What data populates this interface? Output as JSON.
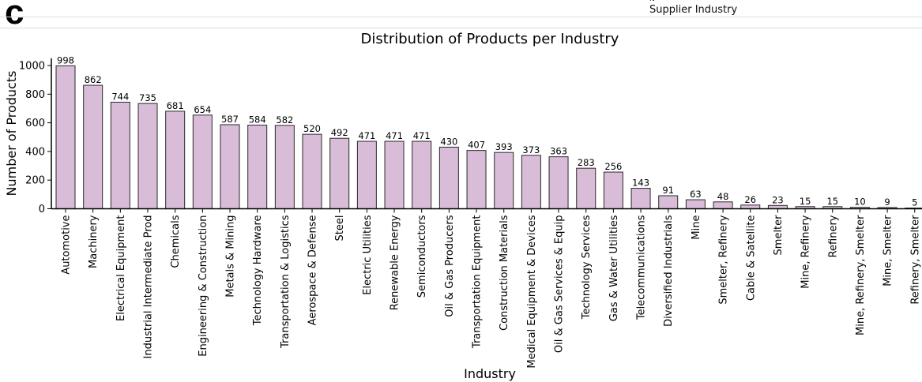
{
  "panel_label": "c",
  "header": {
    "cut_text": "N",
    "label": "Supplier Industry"
  },
  "colors": {
    "bar_fill": "#d8bcd8",
    "bar_stroke": "#2a2a2a",
    "axis": "#000000"
  },
  "chart_data": {
    "type": "bar",
    "title": "Distribution of Products per Industry",
    "xlabel": "Industry",
    "ylabel": "Number of Products",
    "ylim": [
      0,
      1050
    ],
    "yticks": [
      0,
      200,
      400,
      600,
      800,
      1000
    ],
    "grid": false,
    "categories": [
      "Automotive",
      "Machinery",
      "Electrical Equipment",
      "Industrial Intermediate Prod",
      "Chemicals",
      "Engineering & Construction",
      "Metals & Mining",
      "Technology Hardware",
      "Transportation & Logistics",
      "Aerospace & Defense",
      "Steel",
      "Electric Utilities",
      "Renewable Energy",
      "Semiconductors",
      "Oil & Gas Producers",
      "Transportation Equipment",
      "Construction Materials",
      "Medical Equipment & Devices",
      "Oil & Gas Services & Equip",
      "Technology Services",
      "Gas & Water Utilities",
      "Telecommunications",
      "Diversified Industrials",
      "Mine",
      "Smelter, Refinery",
      "Cable & Satellite",
      "Smelter",
      "Mine, Refinery",
      "Refinery",
      "Mine, Refinery, Smelter",
      "Mine, Smelter",
      "Refinery, Smelter"
    ],
    "values": [
      998,
      862,
      744,
      735,
      681,
      654,
      587,
      584,
      582,
      520,
      492,
      471,
      471,
      471,
      430,
      407,
      393,
      373,
      363,
      283,
      256,
      143,
      91,
      63,
      48,
      26,
      23,
      15,
      15,
      10,
      9,
      5
    ]
  }
}
